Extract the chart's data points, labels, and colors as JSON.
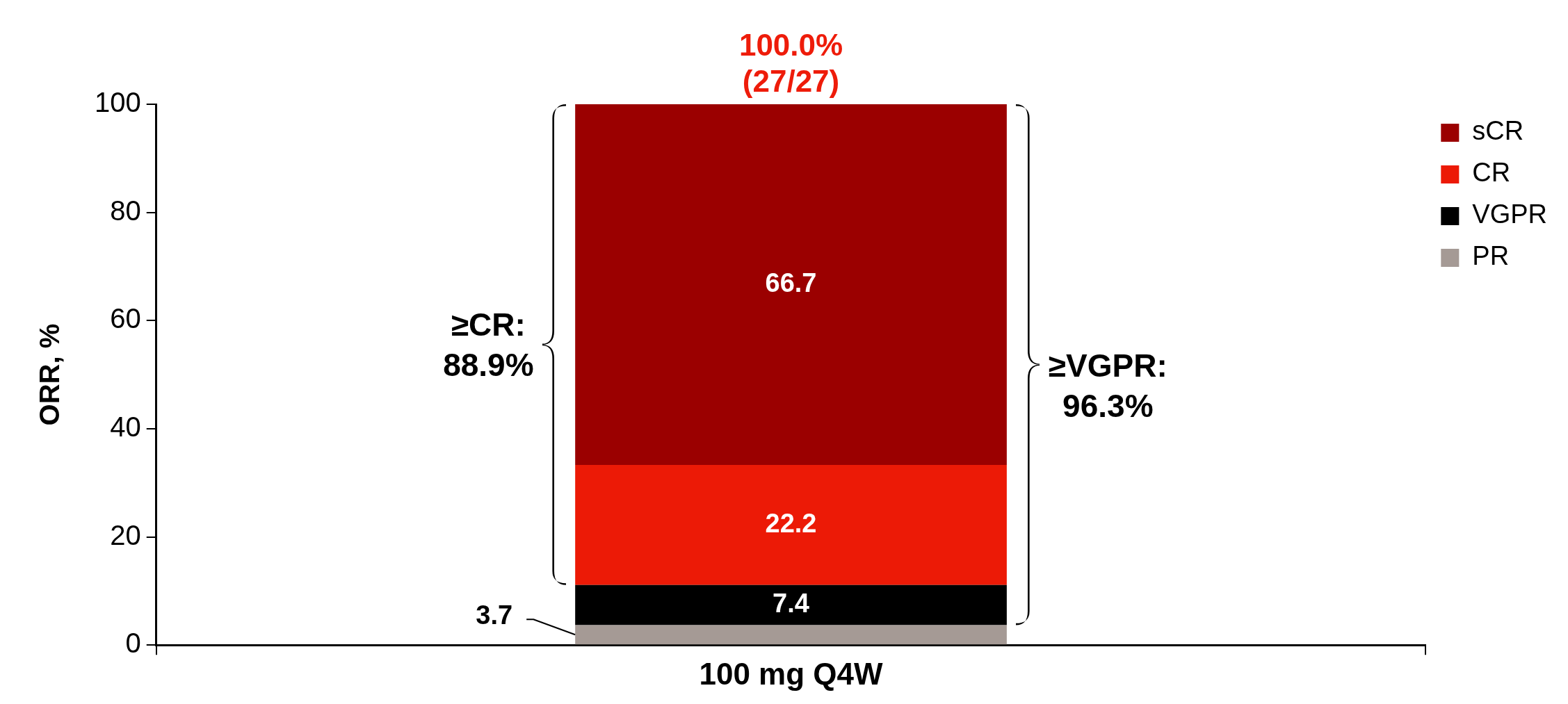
{
  "chart_data": {
    "type": "bar",
    "stacked": true,
    "categories": [
      "100 mg Q4W"
    ],
    "ylabel": "ORR, %",
    "ylim": [
      0,
      100
    ],
    "yticks": [
      0,
      20,
      40,
      60,
      80,
      100
    ],
    "grid": false,
    "legend": "top right",
    "series": [
      {
        "name": "PR",
        "color": "#a59a95",
        "values": [
          3.7
        ],
        "value_labels": [
          "3.7"
        ]
      },
      {
        "name": "VGPR",
        "color": "#000000",
        "values": [
          7.4
        ],
        "value_labels": [
          "7.4"
        ]
      },
      {
        "name": "CR",
        "color": "#ec1a06",
        "values": [
          22.2
        ],
        "value_labels": [
          "22.2"
        ]
      },
      {
        "name": "sCR",
        "color": "#9b0000",
        "values": [
          66.7
        ],
        "value_labels": [
          "66.7"
        ]
      }
    ],
    "totals": [
      "100.0%\n(27/27)"
    ],
    "annotations": [
      "≥CR:\n88.9%",
      "≥VGPR:\n96.3%"
    ]
  }
}
